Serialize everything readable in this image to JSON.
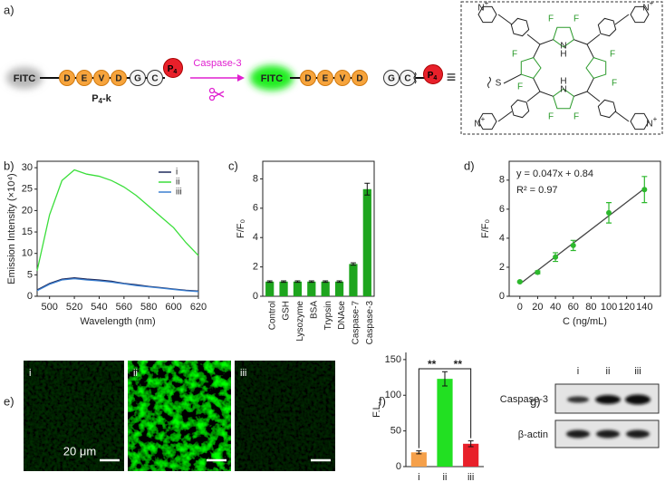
{
  "scheme": {
    "label": "a)",
    "start": "FITC",
    "residues": [
      "D",
      "E",
      "V",
      "D",
      "G",
      "C"
    ],
    "tag": [
      "P",
      "4"
    ],
    "name": [
      "P",
      "4",
      "-k"
    ],
    "enzyme": "Caspase-3",
    "product_dye": "FITC",
    "product_residues": [
      "D",
      "E",
      "V",
      "D"
    ],
    "fragment": [
      "G",
      "C"
    ],
    "fragment_tag": [
      "P",
      "4"
    ],
    "equiv": "≡",
    "structure": {
      "pyrrole_n": [
        "N",
        "N"
      ],
      "pyrrole_h": [
        "H",
        "H"
      ],
      "fluorine": [
        "F",
        "F",
        "F",
        "F",
        "F",
        "F",
        "F",
        "F"
      ],
      "sulfur": "S",
      "pyridinium": [
        "N",
        "N",
        "N",
        "N"
      ],
      "charge": [
        "+",
        "+",
        "+",
        "+"
      ]
    }
  },
  "imaging": {
    "label": "e)",
    "panels": [
      "i",
      "ii",
      "iii"
    ],
    "scale_bar": "20 μm"
  },
  "blot": {
    "label": "g)",
    "lanes": [
      "i",
      "ii",
      "iii"
    ],
    "proteins": [
      "Caspase-3",
      "β-actin"
    ]
  },
  "chart_data": [
    {
      "type": "line",
      "label": "b)",
      "xlabel": "Wavelength (nm)",
      "ylabel": "Emission Intensity (×10⁴)",
      "x": [
        490,
        500,
        510,
        520,
        530,
        540,
        550,
        560,
        570,
        580,
        590,
        600,
        610,
        620
      ],
      "series": [
        {
          "name": "i",
          "color": "#1f2a5c",
          "values": [
            1.5,
            3,
            4,
            4.3,
            4,
            3.8,
            3.5,
            3,
            2.7,
            2.3,
            2,
            1.7,
            1.4,
            1.2
          ]
        },
        {
          "name": "ii",
          "color": "#3ade3a",
          "values": [
            6,
            19,
            27,
            29.5,
            28.5,
            28,
            27,
            25.5,
            23.5,
            21,
            18.5,
            16,
            12.5,
            9.5
          ]
        },
        {
          "name": "iii",
          "color": "#3a7fd0",
          "values": [
            1.3,
            2.8,
            3.8,
            4.1,
            3.8,
            3.6,
            3.3,
            2.9,
            2.5,
            2.2,
            1.9,
            1.6,
            1.3,
            1.1
          ]
        }
      ],
      "xlim": [
        490,
        620
      ],
      "ylim": [
        0,
        31.5
      ],
      "xticks": [
        500,
        520,
        540,
        560,
        580,
        600,
        620
      ],
      "yticks": [
        0,
        5,
        10,
        15,
        20,
        25,
        30
      ],
      "legend": "upper right"
    },
    {
      "type": "bar",
      "label": "c)",
      "ylabel": "F/F₀",
      "categories": [
        "Control",
        "GSH",
        "Lysozyme",
        "BSA",
        "Trypsin",
        "DNAse",
        "Caspase-7",
        "Caspase-3"
      ],
      "values": [
        1,
        1,
        1,
        1,
        1,
        1,
        2.2,
        7.3
      ],
      "errors": [
        0.05,
        0.05,
        0.05,
        0.05,
        0.05,
        0.05,
        0.08,
        0.4
      ],
      "color": "#1ea51e",
      "ylim": [
        0,
        9.2
      ],
      "yticks": [
        0,
        2,
        4,
        6,
        8
      ]
    },
    {
      "type": "scatter",
      "label": "d)",
      "xlabel": "C (ng/mL)",
      "ylabel": "F/F₀",
      "x": [
        0,
        20,
        40,
        60,
        100,
        140
      ],
      "values": [
        1,
        1.65,
        2.7,
        3.5,
        5.75,
        7.35
      ],
      "errors": [
        0.05,
        0.1,
        0.3,
        0.35,
        0.7,
        0.9
      ],
      "color": "#2db82d",
      "fit": {
        "slope": 0.047,
        "intercept": 0.84
      },
      "annotations": [
        "y = 0.047x + 0.84",
        "R² = 0.97"
      ],
      "xlim": [
        -12,
        158
      ],
      "ylim": [
        0,
        9.3
      ],
      "xticks": [
        0,
        20,
        40,
        60,
        80,
        100,
        120,
        140
      ],
      "yticks": [
        0,
        2,
        4,
        6,
        8
      ]
    },
    {
      "type": "bar",
      "label": "f)",
      "ylabel": "F.L.",
      "categories": [
        "i",
        "ii",
        "iii"
      ],
      "values": [
        20,
        123,
        32
      ],
      "errors": [
        2,
        10,
        4
      ],
      "colors": [
        "#f5a04a",
        "#22e022",
        "#e8202a"
      ],
      "annotations": [
        "**",
        "**"
      ],
      "ylim": [
        0,
        160
      ],
      "yticks": [
        0,
        50,
        100,
        150
      ]
    }
  ]
}
